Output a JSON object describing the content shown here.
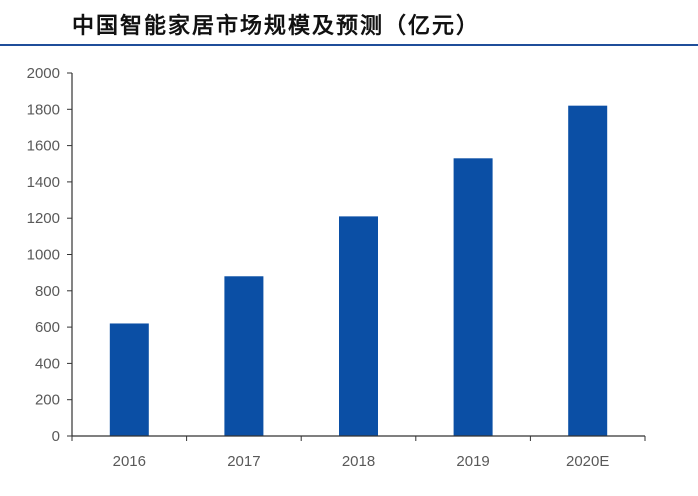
{
  "title": "中国智能家居市场规模及预测（亿元）",
  "colors": {
    "bar": "#0B4FA5",
    "rule": "#1F4E9A",
    "axis": "#333333"
  },
  "chart_data": {
    "type": "bar",
    "title": "中国智能家居市场规模及预测（亿元）",
    "xlabel": "",
    "ylabel": "",
    "categories": [
      "2016",
      "2017",
      "2018",
      "2019",
      "2020E"
    ],
    "values": [
      620,
      880,
      1210,
      1530,
      1820
    ],
    "ylim": [
      0,
      2000
    ],
    "yticks": [
      "0",
      "200",
      "400",
      "600",
      "800",
      "1000",
      "1200",
      "1400",
      "1600",
      "1800",
      "2000"
    ],
    "grid": false,
    "legend": "none"
  }
}
